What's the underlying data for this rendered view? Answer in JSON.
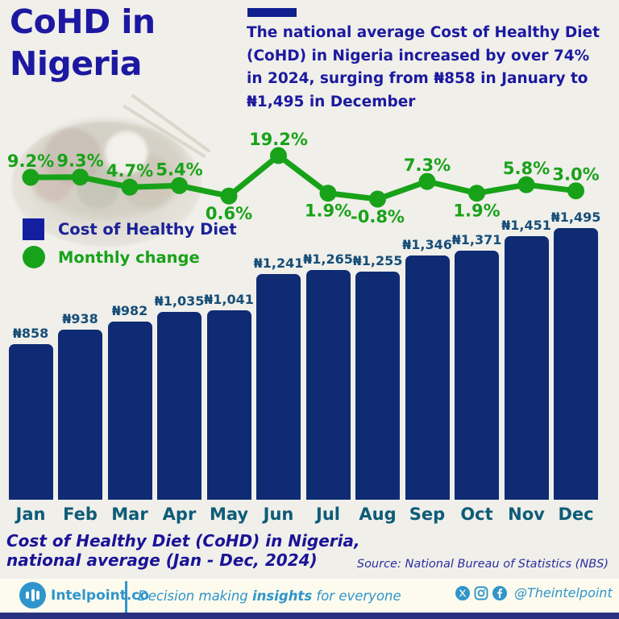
{
  "header": {
    "title_line1": "CoHD in",
    "title_line2": "Nigeria",
    "description_lines": [
      "The national average Cost of Healthy Diet",
      "(CoHD) in Nigeria increased by over 74%",
      "in 2024, surging from ₦858 in January to",
      "₦1,495 in December"
    ]
  },
  "legend": {
    "items": [
      {
        "label": "Cost of Healthy Diet",
        "swatch": "square",
        "color": "#141fa0"
      },
      {
        "label": "Monthly change",
        "swatch": "circle",
        "color": "#18a219"
      }
    ]
  },
  "chart_data": {
    "type": "bar",
    "title": "Cost of Healthy Diet (CoHD) in Nigeria, national average (Jan - Dec, 2024)",
    "categories": [
      "Jan",
      "Feb",
      "Mar",
      "Apr",
      "May",
      "Jun",
      "Jul",
      "Aug",
      "Sep",
      "Oct",
      "Nov",
      "Dec"
    ],
    "series": [
      {
        "name": "Cost of Healthy Diet",
        "type": "bar",
        "unit": "₦",
        "color": "#0e2b74",
        "values": [
          858,
          938,
          982,
          1035,
          1041,
          1241,
          1265,
          1255,
          1346,
          1371,
          1451,
          1495
        ],
        "labels": [
          "₦858",
          "₦938",
          "₦982",
          "₦1,035",
          "₦1,041",
          "₦1,241",
          "₦1,265",
          "₦1,255",
          "₦1,346",
          "₦1,371",
          "₦1,451",
          "₦1,495"
        ]
      },
      {
        "name": "Monthly change",
        "type": "line",
        "unit": "%",
        "color": "#18a219",
        "values": [
          9.2,
          9.3,
          4.7,
          5.4,
          0.6,
          19.2,
          1.9,
          -0.8,
          7.3,
          1.9,
          5.8,
          3.0
        ],
        "labels": [
          "9.2%",
          "9.3%",
          "4.7%",
          "5.4%",
          "0.6%",
          "19.2%",
          "1.9%",
          "-0.8%",
          "7.3%",
          "1.9%",
          "5.8%",
          "3.0%"
        ],
        "label_side": [
          "above",
          "above",
          "above",
          "above",
          "below",
          "above",
          "below",
          "below",
          "above",
          "below",
          "above",
          "above"
        ]
      }
    ],
    "ylim_bar": [
      0,
      1495
    ],
    "ylim_line": [
      -2,
      20
    ],
    "grid": false,
    "legend_position": "left-middle"
  },
  "caption": {
    "line1": "Cost of Healthy Diet (CoHD) in Nigeria,",
    "line2": "national average (Jan - Dec, 2024)",
    "source": "Source: National Bureau of Statistics (NBS)"
  },
  "footer": {
    "brand": "Intelpoint.co",
    "tagline_prefix": "Decision making ",
    "tagline_bold": "insights",
    "tagline_suffix": " for everyone",
    "handle": "@Theintelpoint"
  },
  "colors": {
    "background": "#f0efea",
    "navy_text": "#1d18a1",
    "bar_fill": "#0e2b74",
    "value_label": "#174e78",
    "month_label": "#0d5c78",
    "green": "#18a219",
    "footer_blue": "#3095cc",
    "footer_bg": "#fcfbee",
    "bottom_strip": "#2a3280"
  }
}
